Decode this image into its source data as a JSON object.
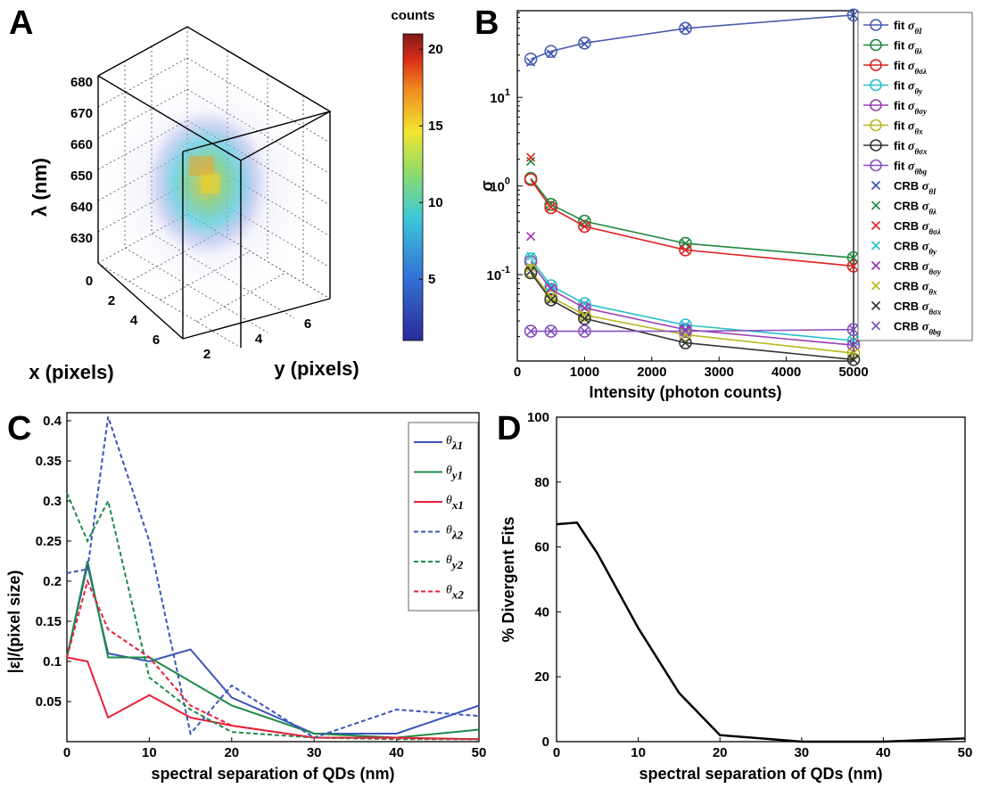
{
  "panels": {
    "A": {
      "letter": "A"
    },
    "B": {
      "letter": "B"
    },
    "C": {
      "letter": "C"
    },
    "D": {
      "letter": "D"
    }
  },
  "chart_data": [
    {
      "panel": "A",
      "type": "heatmap",
      "zlabel": "λ (nm)",
      "xlabel": "x (pixels)",
      "ylabel": "y (pixels)",
      "colorbar_label": "counts",
      "colorbar_ticks": [
        5,
        10,
        15,
        20
      ],
      "colorbar_range": [
        1,
        21
      ],
      "z_ticks": [
        630,
        640,
        650,
        660,
        670,
        680
      ],
      "x_ticks": [
        0,
        2,
        4,
        6
      ],
      "y_ticks": [
        2,
        4,
        6
      ],
      "colors": {
        "low": "#2c2c9c",
        "mid": "#3ec8d8",
        "mid2": "#f0e030",
        "high": "#8b1a1a"
      }
    },
    {
      "panel": "B",
      "type": "line",
      "xlabel": "Intensity (photon counts)",
      "ylabel": "σ",
      "xlim": [
        0,
        5000
      ],
      "ylim_log": [
        0.01,
        100
      ],
      "yscale": "log",
      "x_ticks": [
        0,
        1000,
        2000,
        3000,
        4000,
        5000
      ],
      "y_ticks": [
        {
          "value": 0.1,
          "base": "10",
          "exp": "-1"
        },
        {
          "value": 1,
          "base": "10",
          "exp": "0"
        },
        {
          "value": 10,
          "base": "10",
          "exp": "1"
        }
      ],
      "x": [
        200,
        500,
        1000,
        2500,
        5000
      ],
      "series": [
        {
          "name": "fit σθI",
          "key": "fit",
          "sub": "θI",
          "color": "#4a5fb0",
          "marker": "o",
          "values": [
            27,
            33,
            41,
            60,
            85
          ]
        },
        {
          "name": "fit σθλ",
          "key": "fit",
          "sub": "θλ",
          "color": "#1e8a3e",
          "marker": "o",
          "values": [
            1.22,
            0.62,
            0.4,
            0.225,
            0.155
          ]
        },
        {
          "name": "fit σθσλ",
          "key": "fit",
          "sub": "θσλ",
          "color": "#e02020",
          "marker": "o",
          "values": [
            1.18,
            0.57,
            0.35,
            0.19,
            0.125
          ]
        },
        {
          "name": "fit σθy",
          "key": "fit",
          "sub": "θy",
          "color": "#28c0c8",
          "marker": "o",
          "values": [
            0.15,
            0.075,
            0.047,
            0.027,
            0.018
          ]
        },
        {
          "name": "fit σθσy",
          "key": "fit",
          "sub": "θσy",
          "color": "#9b3fb0",
          "marker": "o",
          "values": [
            0.14,
            0.068,
            0.042,
            0.024,
            0.016
          ]
        },
        {
          "name": "fit σθx",
          "key": "fit",
          "sub": "θx",
          "color": "#b8b820",
          "marker": "o",
          "values": [
            0.11,
            0.056,
            0.035,
            0.021,
            0.013
          ]
        },
        {
          "name": "fit σθσx",
          "key": "fit",
          "sub": "θσx",
          "color": "#333333",
          "marker": "o",
          "values": [
            0.105,
            0.052,
            0.032,
            0.017,
            0.011
          ]
        },
        {
          "name": "fit σθbg",
          "key": "fit",
          "sub": "θbg",
          "color": "#8a4fc0",
          "marker": "o",
          "values": [
            0.023,
            0.023,
            0.023,
            0.023,
            0.024
          ]
        },
        {
          "name": "CRB σθI",
          "key": "CRB",
          "sub": "θI",
          "color": "#3a50b0",
          "marker": "x",
          "values": [
            25,
            31,
            40,
            60,
            85
          ]
        },
        {
          "name": "CRB σθλ",
          "key": "CRB",
          "sub": "θλ",
          "color": "#1e8a3e",
          "marker": "x",
          "values": [
            1.9,
            0.63,
            0.39,
            0.225,
            0.155
          ]
        },
        {
          "name": "CRB σθσλ",
          "key": "CRB",
          "sub": "θσλ",
          "color": "#e02020",
          "marker": "x",
          "values": [
            2.1,
            0.58,
            0.35,
            0.19,
            0.125
          ]
        },
        {
          "name": "CRB σθy",
          "key": "CRB",
          "sub": "θy",
          "color": "#28c0c8",
          "marker": "x",
          "values": [
            0.16,
            0.074,
            0.047,
            0.027,
            0.018
          ]
        },
        {
          "name": "CRB σθσy",
          "key": "CRB",
          "sub": "θσy",
          "color": "#9b30b0",
          "marker": "x",
          "values": [
            0.27,
            0.07,
            0.042,
            0.024,
            0.016
          ]
        },
        {
          "name": "CRB σθx",
          "key": "CRB",
          "sub": "θx",
          "color": "#b8b820",
          "marker": "x",
          "values": [
            0.12,
            0.056,
            0.035,
            0.021,
            0.013
          ]
        },
        {
          "name": "CRB σθσx",
          "key": "CRB",
          "sub": "θσx",
          "color": "#333333",
          "marker": "x",
          "values": [
            0.11,
            0.052,
            0.032,
            0.017,
            0.011
          ]
        },
        {
          "name": "CRB σθbg",
          "key": "CRB",
          "sub": "θbg",
          "color": "#7a4fc0",
          "marker": "x",
          "values": [
            0.023,
            0.023,
            0.023,
            0.023,
            0.024
          ]
        }
      ]
    },
    {
      "panel": "C",
      "type": "line",
      "xlabel": "spectral separation of QDs (nm)",
      "ylabel": "|ε|/(pixel size)",
      "xlim": [
        0,
        50
      ],
      "ylim": [
        0,
        0.41
      ],
      "x_ticks": [
        0,
        10,
        20,
        30,
        40,
        50
      ],
      "y_ticks": [
        0.05,
        0.1,
        0.15,
        0.2,
        0.25,
        0.3,
        0.35,
        0.4
      ],
      "x": [
        0,
        2.5,
        5,
        10,
        15,
        20,
        30,
        40,
        50
      ],
      "series": [
        {
          "name": "θλ1",
          "base": "θ",
          "sub": "λ1",
          "color": "#3a56b8",
          "dash": "solid",
          "values": [
            0.105,
            0.22,
            0.11,
            0.1,
            0.115,
            0.055,
            0.01,
            0.01,
            0.045
          ]
        },
        {
          "name": "θy1",
          "base": "θ",
          "sub": "y1",
          "color": "#1e8a4a",
          "dash": "solid",
          "values": [
            0.105,
            0.225,
            0.105,
            0.105,
            0.075,
            0.045,
            0.01,
            0.005,
            0.015
          ]
        },
        {
          "name": "θx1",
          "base": "θ",
          "sub": "x1",
          "color": "#e8203a",
          "dash": "solid",
          "values": [
            0.105,
            0.1,
            0.03,
            0.058,
            0.03,
            0.02,
            0.005,
            0.005,
            0.003
          ]
        },
        {
          "name": "θλ2",
          "base": "θ",
          "sub": "λ2",
          "color": "#3a56b8",
          "dash": "dashed",
          "values": [
            0.21,
            0.215,
            0.405,
            0.25,
            0.01,
            0.07,
            0.005,
            0.04,
            0.032
          ]
        },
        {
          "name": "θy2",
          "base": "θ",
          "sub": "y2",
          "color": "#1e8a4a",
          "dash": "dashed",
          "values": [
            0.31,
            0.25,
            0.3,
            0.08,
            0.04,
            0.012,
            0.005,
            0.003,
            0.003
          ]
        },
        {
          "name": "θx2",
          "base": "θ",
          "sub": "x2",
          "color": "#e8203a",
          "dash": "dashed",
          "values": [
            0.105,
            0.2,
            0.14,
            0.105,
            0.045,
            0.02,
            0.005,
            0.004,
            0.003
          ]
        }
      ]
    },
    {
      "panel": "D",
      "type": "line",
      "xlabel": "spectral separation of QDs (nm)",
      "ylabel": "% Divergent Fits",
      "xlim": [
        0,
        50
      ],
      "ylim": [
        0,
        100
      ],
      "x_ticks": [
        0,
        10,
        20,
        30,
        40,
        50
      ],
      "y_ticks": [
        0,
        20,
        40,
        60,
        80,
        100
      ],
      "series": [
        {
          "color": "#000000",
          "x": [
            0,
            2.5,
            5,
            10,
            15,
            20,
            30,
            40,
            50
          ],
          "values": [
            67,
            67.5,
            58,
            35,
            15,
            2,
            0,
            0,
            1
          ]
        }
      ]
    }
  ]
}
